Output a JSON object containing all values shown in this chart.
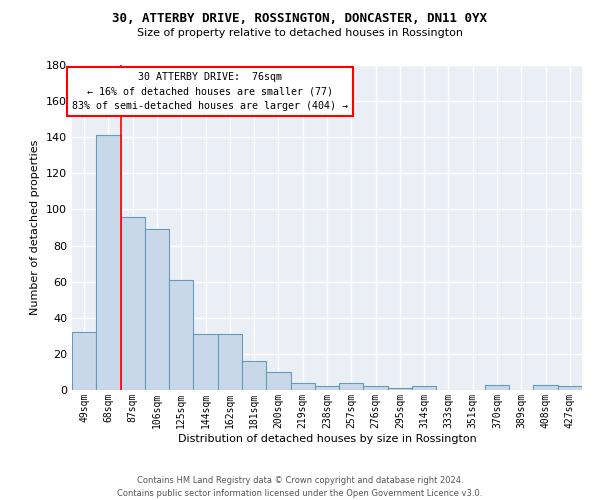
{
  "title": "30, ATTERBY DRIVE, ROSSINGTON, DONCASTER, DN11 0YX",
  "subtitle": "Size of property relative to detached houses in Rossington",
  "xlabel": "Distribution of detached houses by size in Rossington",
  "ylabel": "Number of detached properties",
  "bar_color": "#c8d8e8",
  "bar_edge_color": "#6699bb",
  "bg_color": "#eaeff6",
  "grid_color": "white",
  "categories": [
    "49sqm",
    "68sqm",
    "87sqm",
    "106sqm",
    "125sqm",
    "144sqm",
    "162sqm",
    "181sqm",
    "200sqm",
    "219sqm",
    "238sqm",
    "257sqm",
    "276sqm",
    "295sqm",
    "314sqm",
    "333sqm",
    "351sqm",
    "370sqm",
    "389sqm",
    "408sqm",
    "427sqm"
  ],
  "values": [
    32,
    141,
    96,
    89,
    61,
    31,
    31,
    16,
    10,
    4,
    2,
    4,
    2,
    1,
    2,
    0,
    0,
    3,
    0,
    3,
    2
  ],
  "ylim": [
    0,
    180
  ],
  "yticks": [
    0,
    20,
    40,
    60,
    80,
    100,
    120,
    140,
    160,
    180
  ],
  "property_bin_index": 1,
  "annotation_title": "30 ATTERBY DRIVE:  76sqm",
  "annotation_line1": "← 16% of detached houses are smaller (77)",
  "annotation_line2": "83% of semi-detached houses are larger (404) →",
  "red_line_x": 1.5,
  "footer_line1": "Contains HM Land Registry data © Crown copyright and database right 2024.",
  "footer_line2": "Contains public sector information licensed under the Open Government Licence v3.0."
}
